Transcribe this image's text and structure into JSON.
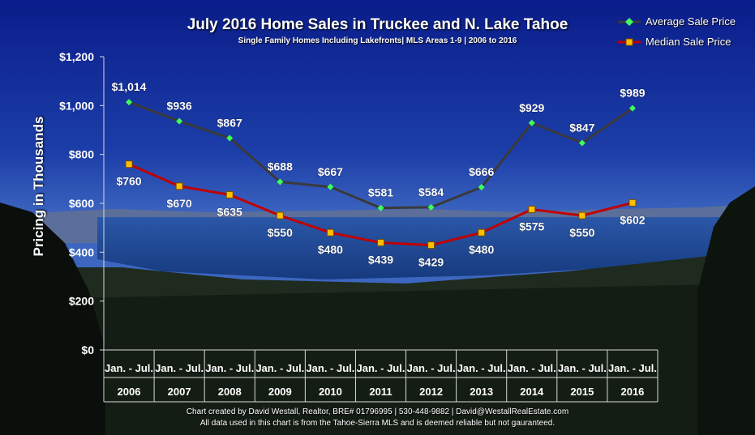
{
  "chart_data": {
    "type": "line",
    "title": "July 2016 Home Sales in Truckee and N. Lake Tahoe",
    "subtitle": "Single Family Homes Including Lakefronts| MLS Areas 1-9 | 2006 to 2016",
    "ylabel": "Pricing in Thousands",
    "ylim": [
      0,
      1200
    ],
    "yticks": [
      "$0",
      "$200",
      "$400",
      "$600",
      "$800",
      "$1,000",
      "$1,200"
    ],
    "category_period": "Jan. - Jul.",
    "categories": [
      "2006",
      "2007",
      "2008",
      "2009",
      "2010",
      "2011",
      "2012",
      "2013",
      "2014",
      "2015",
      "2016"
    ],
    "series": [
      {
        "name": "Average Sale Price",
        "color": "#3a3a3a",
        "marker_color": "#3dff5a",
        "marker": "diamond",
        "values": [
          1014,
          936,
          867,
          688,
          667,
          581,
          584,
          666,
          929,
          847,
          989
        ],
        "labels": [
          "$1,014",
          "$936",
          "$867",
          "$688",
          "$667",
          "$581",
          "$584",
          "$666",
          "$929",
          "$847",
          "$989"
        ]
      },
      {
        "name": "Median Sale Price",
        "color": "#c00000",
        "marker_color": "#ffc000",
        "marker": "square",
        "values": [
          760,
          670,
          635,
          550,
          480,
          439,
          429,
          480,
          575,
          550,
          602
        ],
        "labels": [
          "$760",
          "$670",
          "$635",
          "$550",
          "$480",
          "$439",
          "$429",
          "$480",
          "$575",
          "$550",
          "$602"
        ]
      }
    ],
    "legend_position": "top-right",
    "grid": false
  },
  "footer": {
    "line1": "Chart created by David Westall, Realtor, BRE# 01796995 | 530-448-9882 | David@WestallRealEstate.com",
    "line2": "All data used in this chart is from the Tahoe-Sierra MLS and is deemed reliable but  not gauranteed."
  }
}
